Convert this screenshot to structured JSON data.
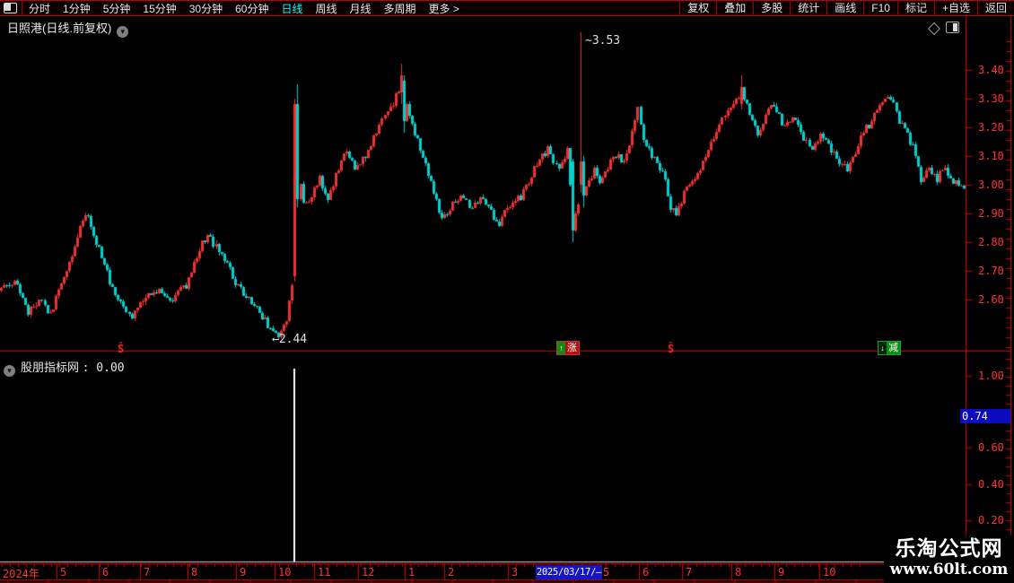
{
  "toolbar": {
    "periods": [
      {
        "label": "分时",
        "active": false
      },
      {
        "label": "1分钟",
        "active": false
      },
      {
        "label": "5分钟",
        "active": false
      },
      {
        "label": "15分钟",
        "active": false
      },
      {
        "label": "30分钟",
        "active": false
      },
      {
        "label": "60分钟",
        "active": false
      },
      {
        "label": "日线",
        "active": true
      },
      {
        "label": "周线",
        "active": false
      },
      {
        "label": "月线",
        "active": false
      },
      {
        "label": "多周期",
        "active": false
      },
      {
        "label": "更多 >",
        "active": false
      }
    ],
    "right_buttons": [
      "复权",
      "叠加",
      "多股",
      "统计",
      "画线",
      "F10",
      "标记",
      "+自选",
      "返回"
    ]
  },
  "main_chart": {
    "title": "日照港(日线.前复权)",
    "high_annotation": "~3.53",
    "low_annotation": "←2.44",
    "signal_marker": "Ŝ",
    "badge_rise": "涨",
    "badge_fall": "减",
    "badge_rise_prefix": "↑",
    "badge_fall_prefix": "↓"
  },
  "indicator_panel": {
    "name": "股朋指标网",
    "value_label": ": 0.00",
    "cursor_value": "0.74"
  },
  "time_axis": {
    "year": "2024年",
    "date_box": "2025/03/17/—"
  },
  "watermark": {
    "line1": "乐淘公式网",
    "line2": "www.60lt.com"
  },
  "colors": {
    "axis_red": "#d40000",
    "label_red": "#ff3232",
    "candle_up": "#ee3232",
    "candle_down": "#00d2d2",
    "active_cyan": "#00ffff",
    "highlight_blue": "#1515c8",
    "badge_red": "#b31111",
    "badge_green": "#0f8a12",
    "spike_white": "#ffffff"
  },
  "chart_data": {
    "type": "candlestick",
    "title": "日照港 日线 前复权",
    "price_axis": {
      "ticks": [
        3.4,
        3.3,
        3.2,
        3.1,
        3.0,
        2.9,
        2.8,
        2.7,
        2.6
      ],
      "annotated_high": 3.53,
      "annotated_low": 2.44
    },
    "n_candles": 355,
    "price_anchors": [
      [
        0,
        2.63
      ],
      [
        5,
        2.67
      ],
      [
        10,
        2.55
      ],
      [
        15,
        2.6
      ],
      [
        18,
        2.55
      ],
      [
        23,
        2.68
      ],
      [
        26,
        2.76
      ],
      [
        31,
        2.9
      ],
      [
        35,
        2.8
      ],
      [
        38,
        2.72
      ],
      [
        41,
        2.63
      ],
      [
        45,
        2.58
      ],
      [
        48,
        2.54
      ],
      [
        53,
        2.61
      ],
      [
        58,
        2.63
      ],
      [
        63,
        2.6
      ],
      [
        68,
        2.65
      ],
      [
        73,
        2.77
      ],
      [
        76,
        2.83
      ],
      [
        79,
        2.78
      ],
      [
        83,
        2.72
      ],
      [
        86,
        2.66
      ],
      [
        89,
        2.62
      ],
      [
        92,
        2.58
      ],
      [
        96,
        2.54
      ],
      [
        99,
        2.5
      ],
      [
        102,
        2.47
      ],
      [
        105,
        2.52
      ],
      [
        107,
        2.65
      ],
      [
        108,
        3.05
      ],
      [
        109,
        3.1
      ],
      [
        111,
        2.93
      ],
      [
        114,
        2.96
      ],
      [
        117,
        3.02
      ],
      [
        120,
        2.96
      ],
      [
        124,
        3.05
      ],
      [
        127,
        3.12
      ],
      [
        130,
        3.05
      ],
      [
        134,
        3.1
      ],
      [
        137,
        3.16
      ],
      [
        140,
        3.22
      ],
      [
        144,
        3.28
      ],
      [
        147,
        3.35
      ],
      [
        149,
        3.28
      ],
      [
        152,
        3.17
      ],
      [
        155,
        3.1
      ],
      [
        158,
        3.0
      ],
      [
        162,
        2.88
      ],
      [
        165,
        2.92
      ],
      [
        169,
        2.95
      ],
      [
        173,
        2.92
      ],
      [
        177,
        2.96
      ],
      [
        180,
        2.9
      ],
      [
        183,
        2.87
      ],
      [
        186,
        2.91
      ],
      [
        191,
        2.96
      ],
      [
        195,
        3.03
      ],
      [
        198,
        3.09
      ],
      [
        201,
        3.12
      ],
      [
        205,
        3.05
      ],
      [
        208,
        3.12
      ],
      [
        210,
        2.88
      ],
      [
        212,
        2.92
      ],
      [
        213,
        3.05
      ],
      [
        215,
        2.98
      ],
      [
        218,
        3.05
      ],
      [
        220,
        3.0
      ],
      [
        223,
        3.06
      ],
      [
        226,
        3.1
      ],
      [
        229,
        3.08
      ],
      [
        232,
        3.18
      ],
      [
        234,
        3.26
      ],
      [
        236,
        3.15
      ],
      [
        239,
        3.1
      ],
      [
        243,
        3.05
      ],
      [
        246,
        2.92
      ],
      [
        248,
        2.9
      ],
      [
        251,
        2.97
      ],
      [
        255,
        3.02
      ],
      [
        258,
        3.08
      ],
      [
        261,
        3.15
      ],
      [
        265,
        3.22
      ],
      [
        268,
        3.27
      ],
      [
        272,
        3.32
      ],
      [
        275,
        3.25
      ],
      [
        278,
        3.18
      ],
      [
        281,
        3.24
      ],
      [
        284,
        3.28
      ],
      [
        288,
        3.2
      ],
      [
        291,
        3.24
      ],
      [
        294,
        3.18
      ],
      [
        298,
        3.12
      ],
      [
        301,
        3.18
      ],
      [
        304,
        3.14
      ],
      [
        308,
        3.08
      ],
      [
        311,
        3.05
      ],
      [
        314,
        3.12
      ],
      [
        317,
        3.18
      ],
      [
        321,
        3.24
      ],
      [
        324,
        3.28
      ],
      [
        327,
        3.3
      ],
      [
        330,
        3.22
      ],
      [
        333,
        3.18
      ],
      [
        336,
        3.1
      ],
      [
        338,
        3.02
      ],
      [
        341,
        3.05
      ],
      [
        344,
        3.02
      ],
      [
        347,
        3.06
      ],
      [
        350,
        3.0
      ],
      [
        354,
        3.0
      ]
    ],
    "special_candles": {
      "108": [
        2.68,
        3.3,
        2.66,
        3.28
      ],
      "109": [
        3.28,
        3.35,
        2.92,
        2.95
      ],
      "147": [
        3.32,
        3.42,
        3.28,
        3.38
      ],
      "148": [
        3.36,
        3.38,
        3.18,
        3.22
      ],
      "210": [
        3.08,
        3.09,
        2.8,
        2.84
      ],
      "213": [
        3.0,
        3.53,
        2.97,
        3.08
      ],
      "214": [
        3.08,
        3.1,
        2.92,
        2.96
      ],
      "272": [
        3.28,
        3.38,
        3.26,
        3.34
      ]
    },
    "indicator": {
      "name": "股朋指标网",
      "current": 0.0,
      "cursor": 0.74,
      "ticks": [
        1.0,
        0.6,
        0.4,
        0.2
      ],
      "spike": {
        "index": 108,
        "value": 1.04
      }
    },
    "x_axis": {
      "year": "2024年",
      "months": [
        "5",
        "6",
        "7",
        "8",
        "9",
        "10",
        "11",
        "12",
        "1",
        "2",
        "3",
        "5",
        "6",
        "7",
        "8",
        "9",
        "10"
      ],
      "highlight_date": "2025/03/17"
    }
  }
}
